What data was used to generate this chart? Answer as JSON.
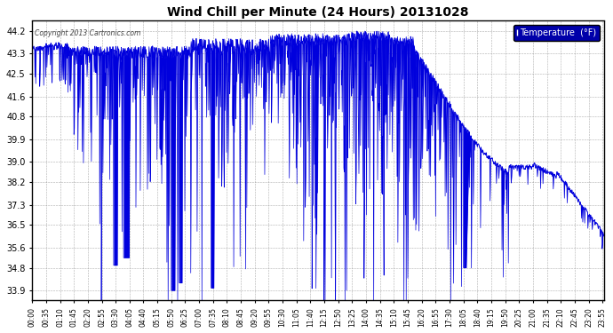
{
  "title": "Wind Chill per Minute (24 Hours) 20131028",
  "copyright_text": "Copyright 2013 Cartronics.com",
  "legend_label": "Temperature  (°F)",
  "line_color": "#0000dd",
  "fill_color": "#0000dd",
  "background_color": "#ffffff",
  "grid_color": "#999999",
  "legend_bg": "#0000aa",
  "legend_fg": "#ffffff",
  "yticks": [
    33.9,
    34.8,
    35.6,
    36.5,
    37.3,
    38.2,
    39.0,
    39.9,
    40.8,
    41.6,
    42.5,
    43.3,
    44.2
  ],
  "ymin": 33.5,
  "ymax": 44.6,
  "xtick_labels": [
    "00:00",
    "00:35",
    "01:10",
    "01:45",
    "02:20",
    "02:55",
    "03:30",
    "04:05",
    "04:40",
    "05:15",
    "05:50",
    "06:25",
    "07:00",
    "07:35",
    "08:10",
    "08:45",
    "09:20",
    "09:55",
    "10:30",
    "11:05",
    "11:40",
    "12:15",
    "12:50",
    "13:25",
    "14:00",
    "14:35",
    "15:10",
    "15:45",
    "16:20",
    "16:55",
    "17:30",
    "18:05",
    "18:40",
    "19:15",
    "19:50",
    "20:25",
    "21:00",
    "21:35",
    "22:10",
    "22:45",
    "23:20",
    "23:55"
  ]
}
